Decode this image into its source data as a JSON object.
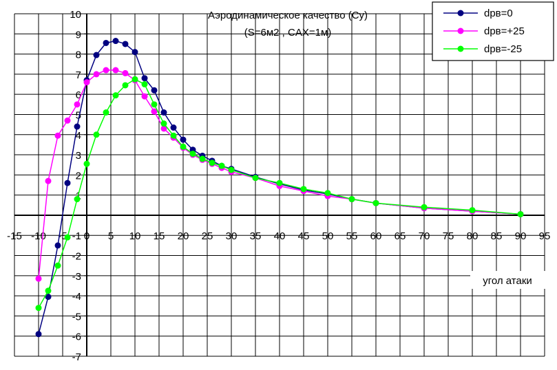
{
  "chart_data": {
    "type": "line",
    "title": "Аэродинамическое качество (Cy)",
    "subtitle": "(S=6м2 , CAX=1м)",
    "xlabel": "угол атаки",
    "ylabel": "",
    "xlim": [
      -15,
      95
    ],
    "ylim": [
      -7,
      10
    ],
    "xticks": [
      -15,
      -10,
      -5,
      0,
      5,
      10,
      15,
      20,
      25,
      30,
      35,
      40,
      45,
      50,
      55,
      60,
      65,
      70,
      75,
      80,
      85,
      90,
      95
    ],
    "yticks": [
      -7,
      -6,
      -5,
      -4,
      -3,
      -2,
      -1,
      0,
      1,
      2,
      3,
      4,
      5,
      6,
      7,
      8,
      9,
      10
    ],
    "grid": true,
    "legend_position": "top-right",
    "series": [
      {
        "name": "dpв=0",
        "color": "#000080",
        "x": [
          -10,
          -8,
          -6,
          -4,
          -2,
          0,
          2,
          4,
          6,
          8,
          10,
          12,
          14,
          16,
          18,
          20,
          22,
          24,
          26,
          28,
          30,
          35,
          40,
          45,
          50,
          55,
          60,
          70,
          80,
          90
        ],
        "y": [
          -5.9,
          -4.05,
          -1.5,
          1.6,
          4.4,
          6.7,
          7.95,
          8.55,
          8.65,
          8.5,
          8.1,
          6.8,
          6.2,
          5.1,
          4.35,
          3.75,
          3.25,
          2.95,
          2.7,
          2.45,
          2.3,
          1.9,
          1.55,
          1.25,
          1.05,
          0.8,
          0.6,
          0.35,
          0.2,
          0.05
        ]
      },
      {
        "name": "dpв=+25",
        "color": "#ff00ff",
        "x": [
          -10,
          -8,
          -6,
          -4,
          -2,
          0,
          2,
          4,
          6,
          8,
          10,
          12,
          14,
          16,
          18,
          20,
          22,
          24,
          26,
          28,
          30,
          35,
          40,
          45,
          50,
          55,
          60,
          70,
          80,
          90
        ],
        "y": [
          -3.15,
          1.7,
          3.95,
          4.7,
          5.5,
          6.6,
          7.0,
          7.2,
          7.2,
          7.05,
          6.7,
          5.9,
          5.15,
          4.3,
          3.85,
          3.35,
          3.0,
          2.75,
          2.55,
          2.35,
          2.15,
          1.85,
          1.45,
          1.2,
          0.95,
          0.8,
          0.6,
          0.35,
          0.2,
          0.05
        ]
      },
      {
        "name": "dpв=-25",
        "color": "#00ff00",
        "x": [
          -10,
          -8,
          -6,
          -4,
          -2,
          0,
          2,
          4,
          6,
          8,
          10,
          12,
          14,
          16,
          18,
          20,
          22,
          24,
          26,
          28,
          30,
          35,
          40,
          45,
          50,
          55,
          60,
          70,
          80,
          90
        ],
        "y": [
          -4.6,
          -3.75,
          -2.5,
          -1.1,
          0.8,
          2.55,
          4.0,
          5.1,
          5.95,
          6.45,
          6.75,
          6.5,
          5.5,
          4.55,
          3.95,
          3.4,
          3.05,
          2.8,
          2.6,
          2.45,
          2.25,
          1.85,
          1.6,
          1.3,
          1.1,
          0.8,
          0.6,
          0.4,
          0.25,
          0.05
        ]
      }
    ]
  }
}
